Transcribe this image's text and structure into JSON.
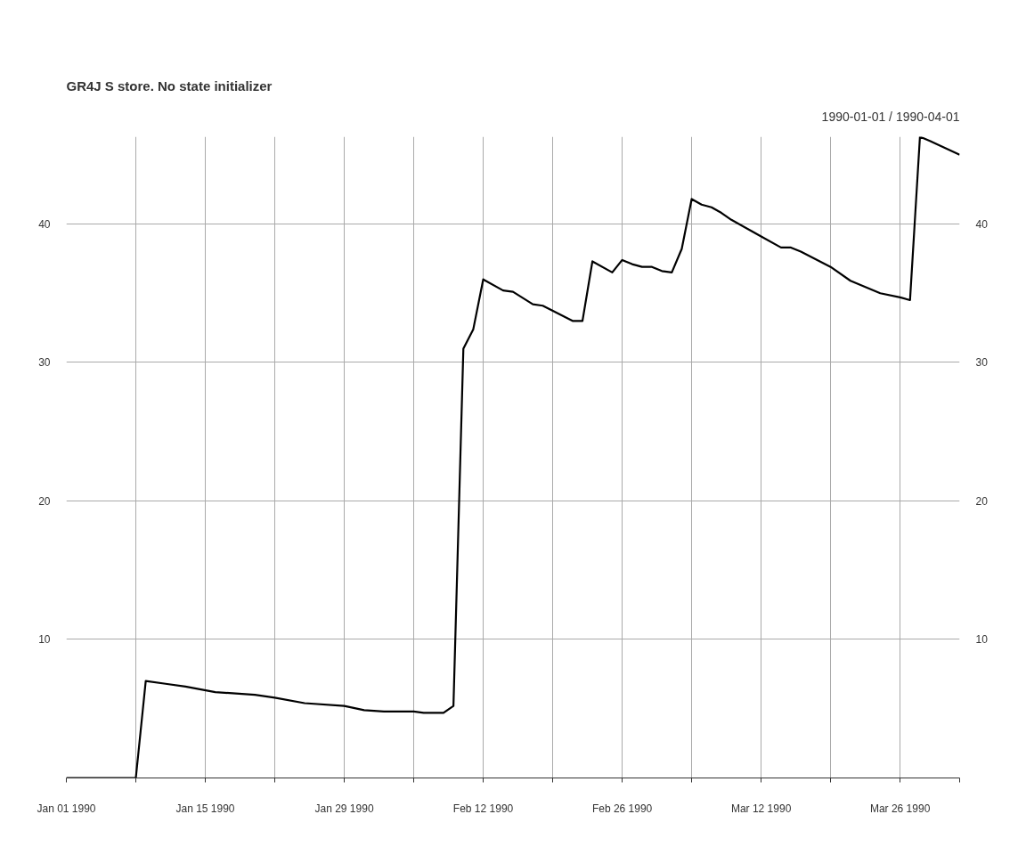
{
  "chart_data": {
    "type": "line",
    "title": "GR4J S store. No state initializer",
    "subtitle": "1990-01-01 / 1990-04-01",
    "x": [
      "1990-01-01",
      "1990-01-08",
      "1990-01-09",
      "1990-01-11",
      "1990-01-13",
      "1990-01-16",
      "1990-01-20",
      "1990-01-22",
      "1990-01-25",
      "1990-01-29",
      "1990-01-31",
      "1990-02-02",
      "1990-02-05",
      "1990-02-06",
      "1990-02-08",
      "1990-02-09",
      "1990-02-10",
      "1990-02-11",
      "1990-02-12",
      "1990-02-14",
      "1990-02-15",
      "1990-02-17",
      "1990-02-18",
      "1990-02-21",
      "1990-02-22",
      "1990-02-23",
      "1990-02-25",
      "1990-02-26",
      "1990-02-27",
      "1990-02-28",
      "1990-03-01",
      "1990-03-02",
      "1990-03-03",
      "1990-03-04",
      "1990-03-05",
      "1990-03-06",
      "1990-03-07",
      "1990-03-08",
      "1990-03-09",
      "1990-03-11",
      "1990-03-12",
      "1990-03-14",
      "1990-03-15",
      "1990-03-16",
      "1990-03-19",
      "1990-03-21",
      "1990-03-24",
      "1990-03-26",
      "1990-03-27",
      "1990-03-28",
      "1990-03-29",
      "1990-04-01"
    ],
    "series": [
      {
        "color": "#000000",
        "values": [
          0,
          0,
          7.0,
          6.8,
          6.6,
          6.2,
          6.0,
          5.8,
          5.4,
          5.2,
          4.9,
          4.8,
          4.8,
          4.7,
          4.7,
          5.2,
          31.0,
          32.4,
          36.0,
          35.2,
          35.1,
          34.2,
          34.1,
          33.0,
          33.0,
          37.3,
          36.5,
          37.4,
          37.1,
          36.9,
          36.9,
          36.6,
          36.5,
          38.2,
          41.8,
          41.4,
          41.2,
          40.8,
          40.3,
          39.5,
          39.1,
          38.3,
          38.3,
          38.0,
          36.9,
          35.9,
          35.0,
          34.7,
          34.5,
          46.3,
          46.0,
          45.0
        ]
      }
    ],
    "xlim": [
      "1990-01-01",
      "1990-04-01"
    ],
    "xticks": [
      {
        "value": "1990-01-01",
        "label": "Jan 01 1990"
      },
      {
        "value": "1990-01-08",
        "label": null
      },
      {
        "value": "1990-01-15",
        "label": "Jan 15 1990"
      },
      {
        "value": "1990-01-22",
        "label": null
      },
      {
        "value": "1990-01-29",
        "label": "Jan 29 1990"
      },
      {
        "value": "1990-02-05",
        "label": null
      },
      {
        "value": "1990-02-12",
        "label": "Feb 12 1990"
      },
      {
        "value": "1990-02-19",
        "label": null
      },
      {
        "value": "1990-02-26",
        "label": "Feb 26 1990"
      },
      {
        "value": "1990-03-05",
        "label": null
      },
      {
        "value": "1990-03-12",
        "label": "Mar 12 1990"
      },
      {
        "value": "1990-03-19",
        "label": null
      },
      {
        "value": "1990-03-26",
        "label": "Mar 26 1990"
      },
      {
        "value": "1990-04-01",
        "label": null
      }
    ],
    "ylim": [
      0,
      46.3
    ],
    "yticks": [
      10,
      20,
      30,
      40
    ],
    "y2lim": [
      0,
      46.3
    ],
    "y2ticks": [
      10,
      20,
      30,
      40
    ],
    "grid": true,
    "line_style": "solid",
    "marker": "none"
  }
}
